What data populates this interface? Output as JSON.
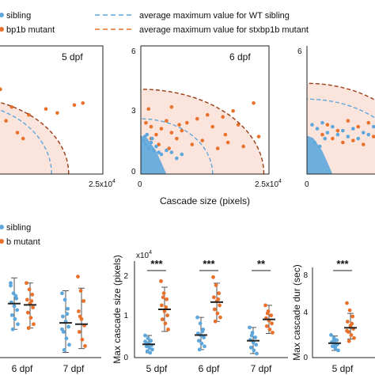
{
  "colors": {
    "wt": "#5ea7dd",
    "mut": "#e8712b",
    "shade": "#fbe4dc",
    "axis": "#222222",
    "mean": "#222222",
    "sd": "#555555"
  },
  "legend_top": {
    "items": [
      {
        "label": "sibling",
        "kind": "dot",
        "color": "#5ea7dd"
      },
      {
        "label": "bp1b mutant",
        "kind": "dot",
        "color": "#e8712b"
      },
      {
        "label": "average maximum value for WT sibling",
        "kind": "dash",
        "color": "#5ea7dd"
      },
      {
        "label": "average maximum value for stxbp1b mutant",
        "kind": "dash",
        "color": "#e8712b"
      }
    ]
  },
  "legend_bottom": {
    "items": [
      {
        "label": "sibling",
        "color": "#5ea7dd"
      },
      {
        "label": "b mutant",
        "color": "#e8712b"
      }
    ]
  },
  "chart_data": [
    {
      "id": "scatter-5dpf",
      "type": "scatter",
      "annotation": "5 dpf",
      "xlabel": "",
      "ylabel": "",
      "x_tick_labels": [
        "2.5x10",
        "4"
      ],
      "y_tick_labels": [],
      "xlim": [
        0,
        25000
      ],
      "ylim": [
        0,
        6.5
      ],
      "avg_max": {
        "wt_x": 16000,
        "wt_y": 3.6,
        "mut_x": 19000,
        "mut_y": 3.9
      },
      "series": [
        {
          "group": "mut",
          "points": [
            [
              20000,
              3.5
            ],
            [
              21500,
              3.6
            ],
            [
              17000,
              3.1
            ],
            [
              15000,
              3.3
            ],
            [
              9000,
              3.4
            ],
            [
              12000,
              3.0
            ],
            [
              7000,
              4.3
            ],
            [
              5500,
              3.8
            ],
            [
              3000,
              2.9
            ],
            [
              2000,
              2.5
            ],
            [
              4000,
              2.4
            ],
            [
              6500,
              2.0
            ],
            [
              8000,
              2.7
            ],
            [
              10000,
              2.1
            ],
            [
              1500,
              2.0
            ],
            [
              3500,
              2.2
            ],
            [
              5000,
              1.7
            ],
            [
              2500,
              1.5
            ],
            [
              1000,
              1.6
            ],
            [
              4500,
              1.8
            ],
            [
              6000,
              1.4
            ],
            [
              3000,
              1.2
            ],
            [
              2000,
              1.1
            ],
            [
              11000,
              1.8
            ],
            [
              1500,
              3.0
            ]
          ]
        },
        {
          "group": "wt",
          "points": [
            [
              1000,
              1.9
            ],
            [
              2000,
              1.7
            ],
            [
              3000,
              1.5
            ],
            [
              1500,
              1.3
            ],
            [
              2500,
              1.2
            ],
            [
              500,
              1.6
            ]
          ]
        }
      ]
    },
    {
      "id": "scatter-6dpf",
      "type": "scatter",
      "annotation": "6 dpf",
      "xlabel": "Cascade size (pixels)",
      "ylabel": "",
      "x_tick_labels": [
        "0",
        "2.5x10",
        "4"
      ],
      "y_tick_labels": [
        "0",
        "3",
        "6"
      ],
      "xlim": [
        0,
        25000
      ],
      "ylim": [
        0,
        6.5
      ],
      "avg_max": {
        "wt_x": 14000,
        "wt_y": 2.8,
        "mut_x": 24000,
        "mut_y": 4.3
      },
      "series": [
        {
          "group": "mut",
          "points": [
            [
              22000,
              3.6
            ],
            [
              18000,
              3.2
            ],
            [
              16000,
              2.9
            ],
            [
              13000,
              3.0
            ],
            [
              11000,
              2.8
            ],
            [
              9000,
              2.6
            ],
            [
              7500,
              2.5
            ],
            [
              5000,
              2.7
            ],
            [
              4000,
              2.3
            ],
            [
              2000,
              2.4
            ],
            [
              1000,
              2.6
            ],
            [
              3000,
              2.0
            ],
            [
              6000,
              2.1
            ],
            [
              8000,
              2.2
            ],
            [
              14000,
              2.4
            ],
            [
              16500,
              2.0
            ],
            [
              19000,
              2.5
            ],
            [
              12000,
              1.7
            ],
            [
              10000,
              1.5
            ],
            [
              7000,
              1.8
            ],
            [
              3500,
              1.5
            ],
            [
              2000,
              1.8
            ],
            [
              1500,
              3.3
            ],
            [
              6000,
              3.4
            ],
            [
              5500,
              1.3
            ],
            [
              17000,
              1.6
            ],
            [
              15000,
              1.3
            ],
            [
              20000,
              1.4
            ],
            [
              23000,
              1.9
            ]
          ]
        },
        {
          "group": "wt",
          "points": [
            [
              500,
              1.7
            ],
            [
              1000,
              1.5
            ],
            [
              1500,
              1.3
            ],
            [
              2000,
              1.6
            ],
            [
              2500,
              1.2
            ],
            [
              3000,
              1.4
            ],
            [
              3500,
              1.1
            ],
            [
              4000,
              1.0
            ],
            [
              5000,
              1.2
            ],
            [
              6000,
              1.1
            ],
            [
              7000,
              0.8
            ],
            [
              8000,
              1.0
            ],
            [
              800,
              1.9
            ],
            [
              1200,
              2.0
            ],
            [
              2200,
              1.8
            ]
          ]
        }
      ]
    },
    {
      "id": "scatter-7dpf",
      "type": "scatter",
      "annotation": "",
      "xlabel": "",
      "ylabel": "",
      "x_tick_labels": [
        "0"
      ],
      "y_tick_labels": [
        "6"
      ],
      "xlim": [
        0,
        25000
      ],
      "ylim": [
        0,
        6.5
      ],
      "avg_max": {
        "wt_x": 20000,
        "wt_y": 3.8,
        "mut_x": 23000,
        "mut_y": 4.6
      },
      "series": [
        {
          "group": "mut",
          "points": [
            [
              18000,
              3.6
            ],
            [
              16000,
              3.2
            ],
            [
              20000,
              2.9
            ],
            [
              14000,
              2.8
            ],
            [
              12000,
              2.6
            ],
            [
              10000,
              2.4
            ],
            [
              8000,
              2.7
            ],
            [
              6000,
              2.2
            ],
            [
              4000,
              2.5
            ],
            [
              3000,
              2.0
            ],
            [
              5000,
              1.8
            ],
            [
              7000,
              1.6
            ],
            [
              9000,
              1.7
            ],
            [
              15000,
              2.2
            ],
            [
              13000,
              1.9
            ],
            [
              11000,
              1.5
            ]
          ]
        },
        {
          "group": "wt",
          "points": [
            [
              1000,
              2.5
            ],
            [
              2000,
              2.3
            ],
            [
              3000,
              2.6
            ],
            [
              4000,
              2.1
            ],
            [
              5000,
              2.4
            ],
            [
              6000,
              2.0
            ],
            [
              7000,
              2.2
            ],
            [
              8000,
              1.9
            ],
            [
              9000,
              2.3
            ],
            [
              10000,
              1.8
            ],
            [
              11000,
              2.1
            ],
            [
              12000,
              2.0
            ],
            [
              13000,
              2.4
            ],
            [
              15000,
              2.6
            ],
            [
              17000,
              2.8
            ],
            [
              19000,
              3.4
            ],
            [
              21000,
              3.0
            ],
            [
              1500,
              1.6
            ],
            [
              2500,
              1.4
            ],
            [
              3500,
              1.8
            ]
          ]
        }
      ]
    },
    {
      "id": "dots-left",
      "type": "scatter",
      "xlabel": "",
      "ylabel": "",
      "categories": [
        "6 dpf",
        "7 dpf"
      ],
      "ylim": [
        0,
        8
      ],
      "groups": [
        {
          "category": "6 dpf",
          "series": "wt",
          "mean": 4.2,
          "sd_low": 2.2,
          "sd_high": 6.2,
          "values": [
            5.6,
            5.0,
            4.6,
            4.3,
            4.0,
            3.7,
            3.3,
            3.0,
            2.6,
            2.2,
            4.8,
            5.8
          ]
        },
        {
          "category": "6 dpf",
          "series": "mut",
          "mean": 4.1,
          "sd_low": 2.3,
          "sd_high": 5.8,
          "values": [
            5.8,
            5.3,
            4.9,
            4.5,
            4.2,
            3.9,
            3.5,
            3.1,
            2.6,
            2.3,
            4.4
          ]
        },
        {
          "category": "7 dpf",
          "series": "wt",
          "mean": 2.7,
          "sd_low": 0.4,
          "sd_high": 5.2,
          "values": [
            5.0,
            4.5,
            3.8,
            3.2,
            2.8,
            2.4,
            2.0,
            1.5,
            1.0,
            0.6,
            3.4,
            2.2
          ]
        },
        {
          "category": "7 dpf",
          "series": "mut",
          "mean": 2.6,
          "sd_low": 0.7,
          "sd_high": 5.4,
          "values": [
            6.3,
            5.2,
            4.4,
            3.6,
            3.0,
            2.5,
            2.0,
            1.4,
            0.9,
            3.2
          ]
        }
      ]
    },
    {
      "id": "dots-max-size",
      "type": "scatter",
      "ylabel": "Max cascade size (pixels)",
      "yexp": "x10",
      "yexp_sup": "4",
      "categories": [
        "5 dpf",
        "6 dpf",
        "7 dpf"
      ],
      "y_ticks": [
        0,
        1,
        2
      ],
      "ylim": [
        0,
        2.4
      ],
      "significance": [
        "***",
        "***",
        "**"
      ],
      "groups": [
        {
          "category": "5 dpf",
          "series": "wt",
          "mean": 0.33,
          "sd_low": 0.12,
          "sd_high": 0.55,
          "values": [
            0.55,
            0.48,
            0.42,
            0.38,
            0.35,
            0.31,
            0.28,
            0.24,
            0.2,
            0.16,
            0.12,
            0.4
          ]
        },
        {
          "category": "5 dpf",
          "series": "mut",
          "mean": 1.2,
          "sd_low": 0.65,
          "sd_high": 1.75,
          "values": [
            1.9,
            1.6,
            1.45,
            1.3,
            1.15,
            1.05,
            0.95,
            0.85,
            0.7,
            1.5,
            1.25
          ]
        },
        {
          "category": "6 dpf",
          "series": "wt",
          "mean": 0.56,
          "sd_low": 0.2,
          "sd_high": 1.0,
          "values": [
            1.0,
            0.85,
            0.7,
            0.6,
            0.55,
            0.5,
            0.42,
            0.35,
            0.28,
            0.2,
            0.65
          ]
        },
        {
          "category": "6 dpf",
          "series": "mut",
          "mean": 1.38,
          "sd_low": 0.9,
          "sd_high": 1.85,
          "values": [
            2.0,
            1.8,
            1.6,
            1.5,
            1.4,
            1.3,
            1.2,
            1.1,
            1.0,
            0.9,
            1.45
          ]
        },
        {
          "category": "7 dpf",
          "series": "wt",
          "mean": 0.42,
          "sd_low": 0.1,
          "sd_high": 0.75,
          "values": [
            0.75,
            0.62,
            0.5,
            0.44,
            0.38,
            0.32,
            0.25,
            0.18,
            0.1,
            0.55
          ]
        },
        {
          "category": "7 dpf",
          "series": "mut",
          "mean": 0.95,
          "sd_low": 0.6,
          "sd_high": 1.3,
          "values": [
            1.3,
            1.15,
            1.05,
            0.98,
            0.92,
            0.85,
            0.78,
            0.7,
            0.62,
            1.1
          ]
        }
      ]
    },
    {
      "id": "dots-max-dur",
      "type": "scatter",
      "ylabel": "Max cascade dur (sec)",
      "categories": [
        "5 dpf"
      ],
      "y_ticks": [
        0,
        4,
        8
      ],
      "ylim": [
        0,
        8
      ],
      "significance": [
        "***"
      ],
      "groups": [
        {
          "category": "5 dpf",
          "series": "wt",
          "mean": 1.4,
          "sd_low": 0.7,
          "sd_high": 2.1,
          "values": [
            2.2,
            1.9,
            1.7,
            1.5,
            1.4,
            1.3,
            1.1,
            0.9,
            0.7,
            1.6,
            1.2
          ]
        },
        {
          "category": "5 dpf",
          "series": "mut",
          "mean": 2.9,
          "sd_low": 1.8,
          "sd_high": 4.3,
          "values": [
            5.3,
            4.6,
            4.0,
            3.5,
            3.1,
            2.8,
            2.5,
            2.2,
            1.9,
            1.6,
            3.3,
            2.6
          ]
        }
      ]
    }
  ]
}
